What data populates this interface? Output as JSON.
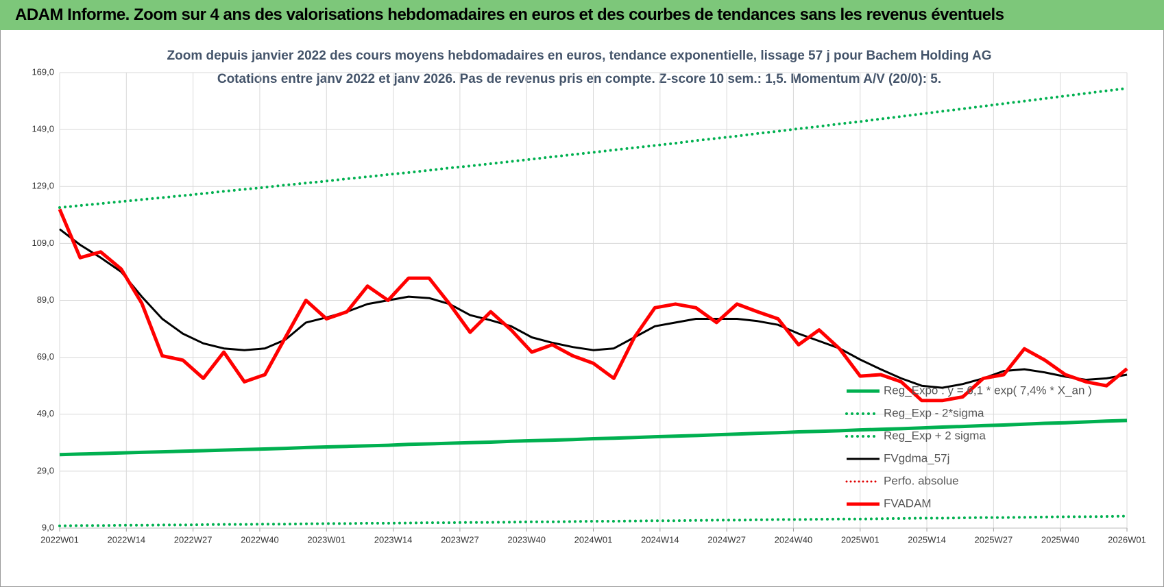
{
  "header": {
    "title": "ADAM Informe. Zoom sur 4 ans des valorisations hebdomadaires en euros et des courbes de tendances sans les revenus éventuels"
  },
  "chart_data": {
    "type": "line",
    "subtitle": "Zoom depuis janvier 2022 des cours moyens hebdomadaires en euros, tendance exponentielle, lissage 57 j pour Bachem Holding AG",
    "subtitle2": "Cotations entre janv 2022 et janv 2026. Pas de revenus pris en compte. Z-score 10 sem.: 1,5. Momentum A/V (20/0): 5.",
    "x": [
      0,
      4,
      8,
      12,
      16,
      20,
      24,
      28,
      32,
      36,
      40,
      44,
      48,
      52,
      56,
      60,
      64,
      68,
      72,
      76,
      80,
      84,
      88,
      92,
      96,
      100,
      104,
      108,
      112,
      116,
      120,
      124,
      128,
      132,
      136,
      140,
      144,
      148,
      152,
      156,
      160,
      164,
      168,
      172,
      176,
      180,
      184,
      188,
      192,
      196,
      200,
      204,
      208
    ],
    "xlim": [
      0,
      208
    ],
    "xticks": [
      {
        "value": 0,
        "label": "2022W01"
      },
      {
        "value": 13,
        "label": "2022W14"
      },
      {
        "value": 26,
        "label": "2022W27"
      },
      {
        "value": 39,
        "label": "2022W40"
      },
      {
        "value": 52,
        "label": "2023W01"
      },
      {
        "value": 65,
        "label": "2023W14"
      },
      {
        "value": 78,
        "label": "2023W27"
      },
      {
        "value": 91,
        "label": "2023W40"
      },
      {
        "value": 104,
        "label": "2024W01"
      },
      {
        "value": 117,
        "label": "2024W14"
      },
      {
        "value": 130,
        "label": "2024W27"
      },
      {
        "value": 143,
        "label": "2024W40"
      },
      {
        "value": 156,
        "label": "2025W01"
      },
      {
        "value": 169,
        "label": "2025W14"
      },
      {
        "value": 182,
        "label": "2025W27"
      },
      {
        "value": 195,
        "label": "2025W40"
      },
      {
        "value": 208,
        "label": "2026W01"
      }
    ],
    "ylim": [
      9,
      169
    ],
    "yticks": [
      {
        "value": 9,
        "label": "9,0"
      },
      {
        "value": 29,
        "label": "29,0"
      },
      {
        "value": 49,
        "label": "49,0"
      },
      {
        "value": 69,
        "label": "69,0"
      },
      {
        "value": 89,
        "label": "89,0"
      },
      {
        "value": 109,
        "label": "109,0"
      },
      {
        "value": 129,
        "label": "129,0"
      },
      {
        "value": 149,
        "label": "149,0"
      },
      {
        "value": 169,
        "label": "169,0"
      }
    ],
    "grid": true,
    "legend": "right",
    "series": [
      {
        "name": "Reg_Expo : y = 6,1 * exp( 7,4% *  X_an )",
        "color": "#00b050",
        "style": "solid",
        "width": 5,
        "values": [
          34.8,
          35.0,
          35.2,
          35.4,
          35.6,
          35.8,
          36.0,
          36.2,
          36.4,
          36.6,
          36.8,
          37.0,
          37.3,
          37.5,
          37.7,
          37.9,
          38.1,
          38.4,
          38.6,
          38.8,
          39.0,
          39.2,
          39.5,
          39.7,
          39.9,
          40.1,
          40.4,
          40.6,
          40.8,
          41.1,
          41.3,
          41.5,
          41.8,
          42.0,
          42.3,
          42.5,
          42.8,
          43.0,
          43.2,
          43.5,
          43.7,
          43.9,
          44.2,
          44.5,
          44.7,
          45.0,
          45.2,
          45.5,
          45.8,
          46.0,
          46.3,
          46.6,
          46.8
        ]
      },
      {
        "name": "Reg_Exp - 2*sigma",
        "color": "#00b050",
        "style": "dotted",
        "width": 4,
        "values": [
          9.8,
          9.9,
          9.9,
          10.0,
          10.0,
          10.1,
          10.1,
          10.2,
          10.3,
          10.3,
          10.4,
          10.4,
          10.5,
          10.6,
          10.6,
          10.7,
          10.7,
          10.8,
          10.9,
          10.9,
          11.0,
          11.0,
          11.1,
          11.2,
          11.2,
          11.3,
          11.4,
          11.4,
          11.5,
          11.6,
          11.6,
          11.7,
          11.8,
          11.8,
          11.9,
          12.0,
          12.0,
          12.1,
          12.2,
          12.2,
          12.3,
          12.4,
          12.5,
          12.5,
          12.6,
          12.7,
          12.7,
          12.8,
          12.9,
          13.0,
          13.0,
          13.1,
          13.2
        ]
      },
      {
        "name": "Reg_Exp + 2 sigma",
        "color": "#00b050",
        "style": "dotted",
        "width": 4,
        "values": [
          121.6,
          122.3,
          123.0,
          123.7,
          124.4,
          125.1,
          125.8,
          126.5,
          127.3,
          128.0,
          128.7,
          129.5,
          130.2,
          130.9,
          131.7,
          132.4,
          133.2,
          133.9,
          134.7,
          135.5,
          136.2,
          137.0,
          137.8,
          138.6,
          139.4,
          140.2,
          141.0,
          141.8,
          142.6,
          143.4,
          144.2,
          145.1,
          145.9,
          146.7,
          147.6,
          148.4,
          149.3,
          150.1,
          151.0,
          151.8,
          152.7,
          153.6,
          154.5,
          155.4,
          156.3,
          157.2,
          158.1,
          159.0,
          159.9,
          160.8,
          161.7,
          162.6,
          163.5
        ]
      },
      {
        "name": "FVgdma_57j",
        "color": "#000000",
        "style": "solid",
        "width": 3,
        "values": [
          114,
          108.5,
          104,
          99,
          90.3,
          82.5,
          77.3,
          73.9,
          72.1,
          71.5,
          72.1,
          75.2,
          81.2,
          83,
          85,
          87.7,
          89,
          90.3,
          89.8,
          87.7,
          83.8,
          82,
          79.9,
          76,
          74.1,
          72.6,
          71.5,
          72.1,
          76,
          79.9,
          81.2,
          82.5,
          82.5,
          82.5,
          81.7,
          80.4,
          77.3,
          74.7,
          72.1,
          68.2,
          64.8,
          61.6,
          59,
          58.3,
          59.6,
          61.6,
          64.2,
          64.8,
          63.7,
          62.2,
          61.1,
          61.6,
          62.9
        ]
      },
      {
        "name": "Perfo. absolue",
        "color": "#e00000",
        "style": "dotted",
        "width": 3,
        "values": [
          null,
          null,
          null,
          null,
          null,
          null,
          null,
          null,
          null,
          null,
          null,
          null,
          null,
          null,
          null,
          null,
          null,
          null,
          null,
          null,
          null,
          null,
          null,
          null,
          null,
          null,
          null,
          null,
          null,
          null,
          null,
          null,
          null,
          null,
          null,
          null,
          null,
          null,
          null,
          null,
          null,
          null,
          null,
          null,
          null,
          null,
          null,
          null,
          null,
          null,
          null,
          null,
          null
        ]
      },
      {
        "name": "FVADAM",
        "color": "#ff0000",
        "style": "solid",
        "width": 5,
        "values": [
          121,
          104,
          106,
          100,
          88,
          69.5,
          68,
          61.6,
          70.8,
          60.4,
          62.9,
          76,
          89,
          82.5,
          85,
          94,
          89,
          96.8,
          96.8,
          87.7,
          77.8,
          85,
          78.6,
          70.8,
          73.4,
          69.5,
          66.9,
          61.6,
          76,
          86.4,
          87.7,
          86.4,
          81.2,
          87.7,
          85,
          82.5,
          73.4,
          78.6,
          72,
          62.4,
          62.9,
          60.4,
          53.8,
          53.8,
          55.1,
          61.6,
          62.9,
          72,
          68,
          62.9,
          60.4,
          59,
          65
        ]
      }
    ]
  }
}
